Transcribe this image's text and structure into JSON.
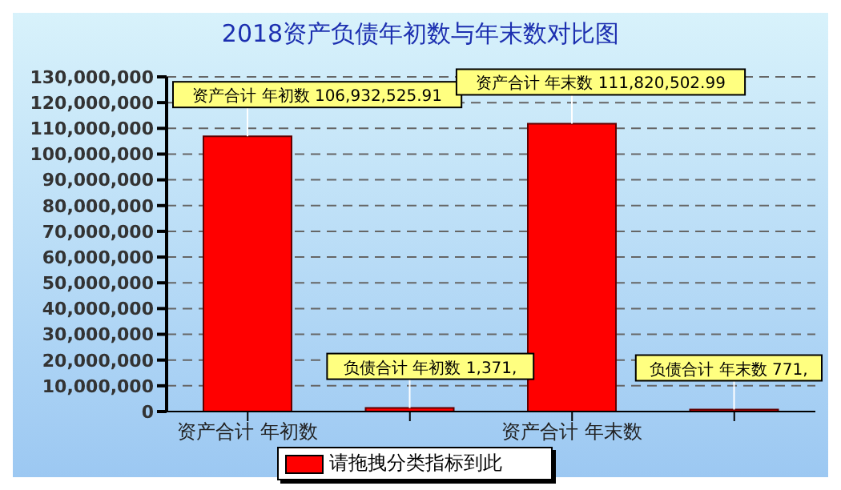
{
  "chart_data": {
    "type": "bar",
    "title": "2018资产负债年初数与年末数对比图",
    "categories": [
      "资产合计 年初数",
      null,
      "资产合计 年末数",
      null
    ],
    "series": [
      {
        "name": "请拖拽分类指标到此",
        "color": "#ff0000",
        "values": [
          106932525.91,
          1371000,
          111820502.99,
          771000
        ],
        "value_labels": [
          "资产合计 年初数 106,932,525.91",
          "负债合计 年初数 1,371,",
          "资产合计 年末数 111,820,502.99",
          "负债合计 年末数 771,"
        ]
      }
    ],
    "ylim": [
      0,
      130000000
    ],
    "yticks": [
      0,
      {
        "value": 10000000,
        "label": "10,000,000"
      },
      {
        "value": 20000000,
        "label": "20,000,000"
      },
      {
        "value": 30000000,
        "label": "30,000,000"
      },
      {
        "value": 40000000,
        "label": "40,000,000"
      },
      {
        "value": 50000000,
        "label": "50,000,000"
      },
      {
        "value": 60000000,
        "label": "60,000,000"
      },
      {
        "value": 70000000,
        "label": "70,000,000"
      },
      {
        "value": 80000000,
        "label": "80,000,000"
      },
      {
        "value": 90000000,
        "label": "90,000,000"
      },
      {
        "value": 100000000,
        "label": "100,000,000"
      },
      {
        "value": 110000000,
        "label": "110,000,000"
      },
      {
        "value": 120000000,
        "label": "120,000,000"
      },
      {
        "value": 130000000,
        "label": "130,000,000"
      }
    ],
    "grid": "y",
    "legend": "bottom"
  }
}
